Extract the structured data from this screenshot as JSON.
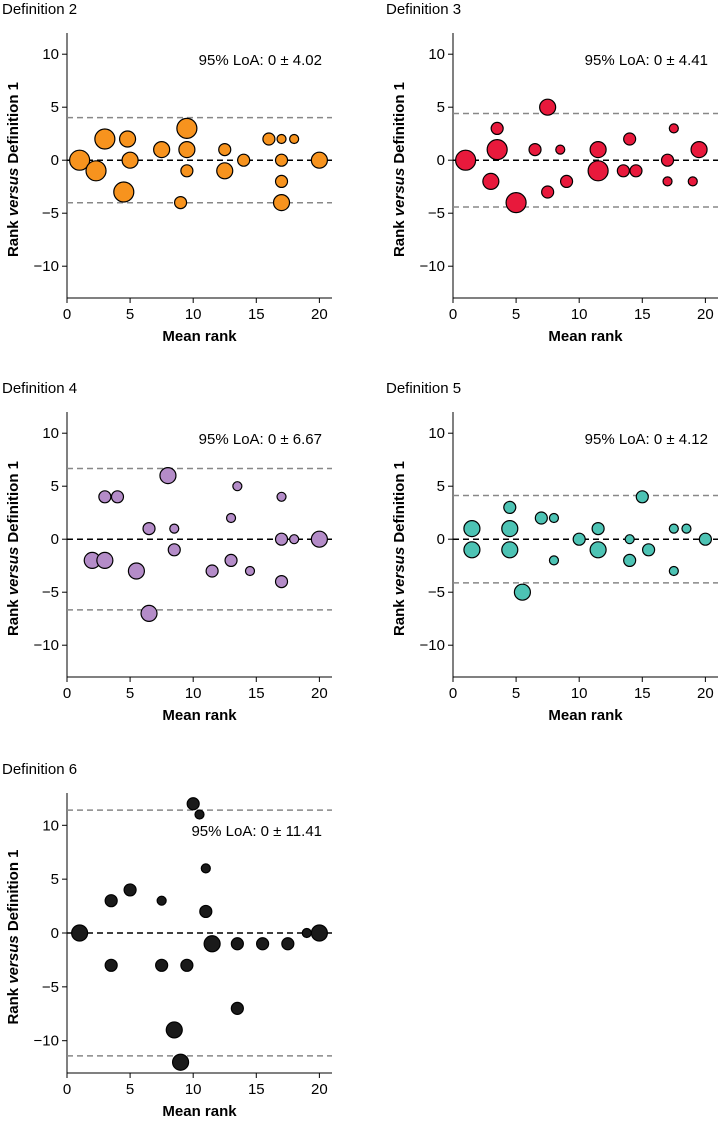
{
  "figure": {
    "colors": {
      "definition_2": "#F7931E",
      "definition_3": "#E8193C",
      "definition_4": "#B48CC8",
      "definition_5": "#4DC3B4",
      "definition_6": "#1A1A1A",
      "limit_line": "#888888",
      "zero_line": "#000000"
    }
  },
  "chart_data": [
    {
      "type": "scatter",
      "title": "Definition 2",
      "xlabel": "Mean rank",
      "ylabel_prefix": "Rank ",
      "ylabel_italic": "versus",
      "ylabel_suffix": " Definition 1",
      "xlim": [
        0,
        21
      ],
      "ylim": [
        -13,
        12
      ],
      "xticks": [
        0,
        5,
        10,
        15,
        20
      ],
      "yticks": [
        10,
        5,
        0,
        -5,
        -10
      ],
      "loa_text": "95% LoA: 0 ± 4.02",
      "loa": 4.02,
      "mean_line": 0,
      "color_key": "definition_2",
      "points": [
        {
          "x": 1,
          "y": 0,
          "n": 4
        },
        {
          "x": 2.3,
          "y": -1,
          "n": 4
        },
        {
          "x": 3,
          "y": 2,
          "n": 4
        },
        {
          "x": 4.5,
          "y": -3,
          "n": 4
        },
        {
          "x": 4.8,
          "y": 2,
          "n": 3
        },
        {
          "x": 5,
          "y": 0,
          "n": 3
        },
        {
          "x": 7.5,
          "y": 1,
          "n": 3
        },
        {
          "x": 9,
          "y": -4,
          "n": 2
        },
        {
          "x": 9.5,
          "y": 3,
          "n": 4
        },
        {
          "x": 9.5,
          "y": 1,
          "n": 3
        },
        {
          "x": 9.5,
          "y": -1,
          "n": 2
        },
        {
          "x": 12.5,
          "y": 1,
          "n": 2
        },
        {
          "x": 12.5,
          "y": -1,
          "n": 3
        },
        {
          "x": 14,
          "y": 0,
          "n": 2
        },
        {
          "x": 16,
          "y": 2,
          "n": 2
        },
        {
          "x": 17,
          "y": 2,
          "n": 1
        },
        {
          "x": 17,
          "y": 0,
          "n": 2
        },
        {
          "x": 17,
          "y": -2,
          "n": 2
        },
        {
          "x": 17,
          "y": -4,
          "n": 3
        },
        {
          "x": 18,
          "y": 2,
          "n": 1
        },
        {
          "x": 20,
          "y": 0,
          "n": 3
        }
      ]
    },
    {
      "type": "scatter",
      "title": "Definition 3",
      "xlabel": "Mean rank",
      "ylabel_prefix": "Rank ",
      "ylabel_italic": "versus",
      "ylabel_suffix": " Definition 1",
      "xlim": [
        0,
        21
      ],
      "ylim": [
        -13,
        12
      ],
      "xticks": [
        0,
        5,
        10,
        15,
        20
      ],
      "yticks": [
        10,
        5,
        0,
        -5,
        -10
      ],
      "loa_text": "95% LoA: 0 ± 4.41",
      "loa": 4.41,
      "mean_line": 0,
      "color_key": "definition_3",
      "points": [
        {
          "x": 1,
          "y": 0,
          "n": 4
        },
        {
          "x": 3,
          "y": -2,
          "n": 3
        },
        {
          "x": 3.5,
          "y": 3,
          "n": 2
        },
        {
          "x": 3.5,
          "y": 1,
          "n": 4
        },
        {
          "x": 5,
          "y": -4,
          "n": 4
        },
        {
          "x": 6.5,
          "y": 1,
          "n": 2
        },
        {
          "x": 7.5,
          "y": 5,
          "n": 3
        },
        {
          "x": 7.5,
          "y": -3,
          "n": 2
        },
        {
          "x": 8.5,
          "y": 1,
          "n": 1
        },
        {
          "x": 9,
          "y": -2,
          "n": 2
        },
        {
          "x": 11.5,
          "y": 1,
          "n": 3
        },
        {
          "x": 11.5,
          "y": -1,
          "n": 4
        },
        {
          "x": 13.5,
          "y": -1,
          "n": 2
        },
        {
          "x": 14,
          "y": 2,
          "n": 2
        },
        {
          "x": 14.5,
          "y": -1,
          "n": 2
        },
        {
          "x": 17,
          "y": 0,
          "n": 2
        },
        {
          "x": 17,
          "y": -2,
          "n": 1
        },
        {
          "x": 17.5,
          "y": 3,
          "n": 1
        },
        {
          "x": 19,
          "y": -2,
          "n": 1
        },
        {
          "x": 19.5,
          "y": 1,
          "n": 3
        }
      ]
    },
    {
      "type": "scatter",
      "title": "Definition 4",
      "xlabel": "Mean rank",
      "ylabel_prefix": "Rank ",
      "ylabel_italic": "versus",
      "ylabel_suffix": " Definition 1",
      "xlim": [
        0,
        21
      ],
      "ylim": [
        -13,
        12
      ],
      "xticks": [
        0,
        5,
        10,
        15,
        20
      ],
      "yticks": [
        10,
        5,
        0,
        -5,
        -10
      ],
      "loa_text": "95% LoA: 0 ± 6.67",
      "loa": 6.67,
      "mean_line": 0,
      "color_key": "definition_4",
      "points": [
        {
          "x": 2,
          "y": -2,
          "n": 3
        },
        {
          "x": 3,
          "y": 4,
          "n": 2
        },
        {
          "x": 3,
          "y": -2,
          "n": 3
        },
        {
          "x": 4,
          "y": 4,
          "n": 2
        },
        {
          "x": 5.5,
          "y": -3,
          "n": 3
        },
        {
          "x": 6.5,
          "y": 1,
          "n": 2
        },
        {
          "x": 6.5,
          "y": -7,
          "n": 3
        },
        {
          "x": 8,
          "y": 6,
          "n": 3
        },
        {
          "x": 8.5,
          "y": 1,
          "n": 1
        },
        {
          "x": 8.5,
          "y": -1,
          "n": 2
        },
        {
          "x": 11.5,
          "y": -3,
          "n": 2
        },
        {
          "x": 13,
          "y": 2,
          "n": 1
        },
        {
          "x": 13,
          "y": -2,
          "n": 2
        },
        {
          "x": 13.5,
          "y": 5,
          "n": 1
        },
        {
          "x": 14.5,
          "y": -3,
          "n": 1
        },
        {
          "x": 17,
          "y": 4,
          "n": 1
        },
        {
          "x": 17,
          "y": 0,
          "n": 2
        },
        {
          "x": 17,
          "y": -4,
          "n": 2
        },
        {
          "x": 18,
          "y": 0,
          "n": 1
        },
        {
          "x": 20,
          "y": 0,
          "n": 3
        }
      ]
    },
    {
      "type": "scatter",
      "title": "Definition 5",
      "xlabel": "Mean rank",
      "ylabel_prefix": "Rank ",
      "ylabel_italic": "versus",
      "ylabel_suffix": " Definition 1",
      "xlim": [
        0,
        21
      ],
      "ylim": [
        -13,
        12
      ],
      "xticks": [
        0,
        5,
        10,
        15,
        20
      ],
      "yticks": [
        10,
        5,
        0,
        -5,
        -10
      ],
      "loa_text": "95% LoA: 0 ± 4.12",
      "loa": 4.12,
      "mean_line": 0,
      "color_key": "definition_5",
      "points": [
        {
          "x": 1.5,
          "y": 1,
          "n": 3
        },
        {
          "x": 1.5,
          "y": -1,
          "n": 3
        },
        {
          "x": 4.5,
          "y": 3,
          "n": 2
        },
        {
          "x": 4.5,
          "y": 1,
          "n": 3
        },
        {
          "x": 4.5,
          "y": -1,
          "n": 3
        },
        {
          "x": 5.5,
          "y": -5,
          "n": 3
        },
        {
          "x": 7,
          "y": 2,
          "n": 2
        },
        {
          "x": 8,
          "y": 2,
          "n": 1
        },
        {
          "x": 8,
          "y": -2,
          "n": 1
        },
        {
          "x": 10,
          "y": 0,
          "n": 2
        },
        {
          "x": 11.5,
          "y": 1,
          "n": 2
        },
        {
          "x": 11.5,
          "y": -1,
          "n": 3
        },
        {
          "x": 14,
          "y": 0,
          "n": 1
        },
        {
          "x": 14,
          "y": -2,
          "n": 2
        },
        {
          "x": 15,
          "y": 4,
          "n": 2
        },
        {
          "x": 15.5,
          "y": -1,
          "n": 2
        },
        {
          "x": 17.5,
          "y": 1,
          "n": 1
        },
        {
          "x": 17.5,
          "y": -3,
          "n": 1
        },
        {
          "x": 18.5,
          "y": 1,
          "n": 1
        },
        {
          "x": 20,
          "y": 0,
          "n": 2
        }
      ]
    },
    {
      "type": "scatter",
      "title": "Definition 6",
      "xlabel": "Mean rank",
      "ylabel_prefix": "Rank ",
      "ylabel_italic": "versus",
      "ylabel_suffix": " Definition 1",
      "xlim": [
        0,
        21
      ],
      "ylim": [
        -13,
        13
      ],
      "xticks": [
        0,
        5,
        10,
        15,
        20
      ],
      "yticks": [
        10,
        5,
        0,
        -5,
        -10
      ],
      "loa_text": "95% LoA: 0 ± 11.41",
      "loa": 11.41,
      "mean_line": 0,
      "color_key": "definition_6",
      "points": [
        {
          "x": 1,
          "y": 0,
          "n": 3
        },
        {
          "x": 3.5,
          "y": 3,
          "n": 2
        },
        {
          "x": 3.5,
          "y": -3,
          "n": 2
        },
        {
          "x": 5,
          "y": 4,
          "n": 2
        },
        {
          "x": 7.5,
          "y": 3,
          "n": 1
        },
        {
          "x": 7.5,
          "y": -3,
          "n": 2
        },
        {
          "x": 8.5,
          "y": -9,
          "n": 3
        },
        {
          "x": 9,
          "y": -12,
          "n": 3
        },
        {
          "x": 9.5,
          "y": -3,
          "n": 2
        },
        {
          "x": 10,
          "y": 12,
          "n": 2
        },
        {
          "x": 10.5,
          "y": 11,
          "n": 1
        },
        {
          "x": 11,
          "y": 6,
          "n": 1
        },
        {
          "x": 11,
          "y": 2,
          "n": 2
        },
        {
          "x": 11.5,
          "y": -1,
          "n": 3
        },
        {
          "x": 13.5,
          "y": -1,
          "n": 2
        },
        {
          "x": 13.5,
          "y": -7,
          "n": 2
        },
        {
          "x": 15.5,
          "y": -1,
          "n": 2
        },
        {
          "x": 17.5,
          "y": -1,
          "n": 2
        },
        {
          "x": 19,
          "y": 0,
          "n": 1
        },
        {
          "x": 20,
          "y": 0,
          "n": 3
        }
      ]
    }
  ]
}
